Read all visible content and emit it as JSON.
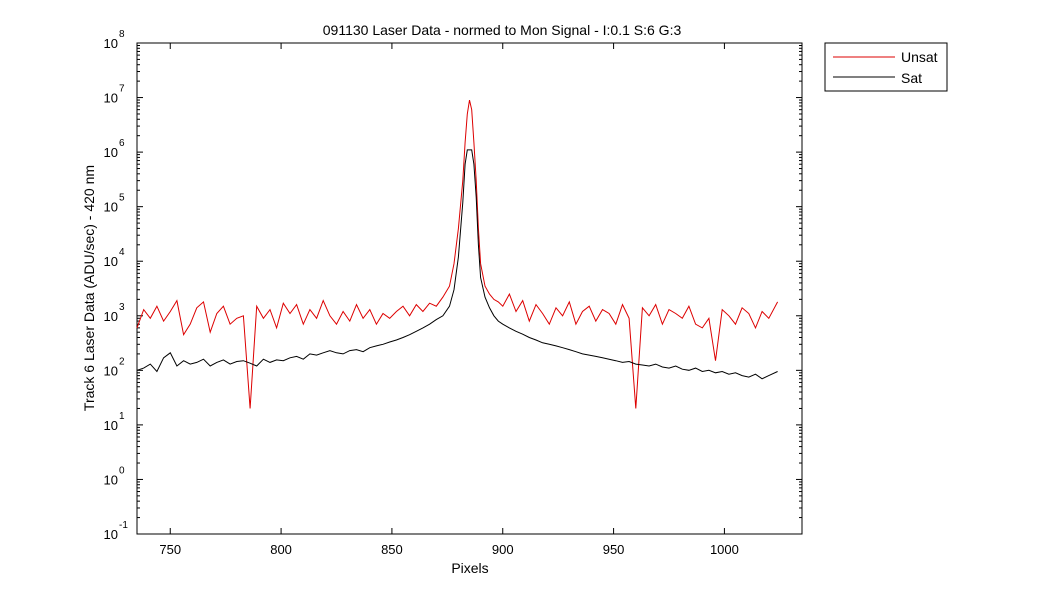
{
  "chart_data": {
    "type": "line",
    "title": "091130 Laser Data - normed to Mon Signal -   I:0.1  S:6  G:3",
    "xlabel": "Pixels",
    "ylabel": "Track 6 Laser Data (ADU/sec) - 420 nm",
    "xlim": [
      735,
      1035
    ],
    "ylim": [
      0.1,
      100000000
    ],
    "yscale": "log",
    "xticks": [
      750,
      800,
      850,
      900,
      950,
      1000
    ],
    "xtick_labels": [
      "750",
      "800",
      "850",
      "900",
      "950",
      "1000"
    ],
    "yticks": [
      {
        "value": 0.1,
        "base": "10",
        "exp": "-1"
      },
      {
        "value": 1,
        "base": "10",
        "exp": "0"
      },
      {
        "value": 10,
        "base": "10",
        "exp": "1"
      },
      {
        "value": 100,
        "base": "10",
        "exp": "2"
      },
      {
        "value": 1000,
        "base": "10",
        "exp": "3"
      },
      {
        "value": 10000,
        "base": "10",
        "exp": "4"
      },
      {
        "value": 100000,
        "base": "10",
        "exp": "5"
      },
      {
        "value": 1000000,
        "base": "10",
        "exp": "6"
      },
      {
        "value": 10000000,
        "base": "10",
        "exp": "7"
      },
      {
        "value": 100000000,
        "base": "10",
        "exp": "8"
      }
    ],
    "grid": false,
    "legend_position": "outside-top-right",
    "series": [
      {
        "name": "Unsat",
        "color": "#dd0000",
        "x": [
          735,
          738,
          741,
          744,
          747,
          750,
          753,
          756,
          759,
          762,
          765,
          768,
          771,
          774,
          777,
          780,
          783,
          786,
          789,
          792,
          795,
          798,
          801,
          804,
          807,
          810,
          813,
          816,
          819,
          822,
          825,
          828,
          831,
          834,
          837,
          840,
          843,
          846,
          849,
          852,
          855,
          858,
          861,
          864,
          867,
          870,
          873,
          876,
          878,
          880,
          882,
          883,
          884,
          885,
          886,
          887,
          888,
          889,
          890,
          892,
          894,
          896,
          898,
          900,
          903,
          906,
          909,
          912,
          915,
          918,
          921,
          924,
          927,
          930,
          933,
          936,
          939,
          942,
          945,
          948,
          951,
          954,
          957,
          960,
          963,
          966,
          969,
          972,
          975,
          978,
          981,
          984,
          987,
          990,
          993,
          996,
          999,
          1002,
          1005,
          1008,
          1011,
          1014,
          1017,
          1020,
          1024
        ],
        "y": [
          600,
          1300,
          900,
          1500,
          800,
          1200,
          1900,
          450,
          700,
          1400,
          1800,
          500,
          1100,
          1500,
          700,
          900,
          1000,
          20,
          1500,
          900,
          1300,
          600,
          1700,
          1100,
          1600,
          700,
          1300,
          900,
          1900,
          1000,
          700,
          1200,
          800,
          1600,
          900,
          1300,
          700,
          1100,
          900,
          1200,
          1500,
          1000,
          1600,
          1200,
          1700,
          1500,
          2200,
          3500,
          9000,
          40000,
          300000,
          1500000,
          5000000,
          9000000,
          6000000,
          1500000,
          300000,
          40000,
          9000,
          3500,
          2500,
          2000,
          1800,
          1500,
          2500,
          1200,
          1900,
          800,
          1600,
          1100,
          700,
          1400,
          1000,
          1800,
          700,
          1200,
          1500,
          800,
          1300,
          1100,
          700,
          1600,
          900,
          20,
          1400,
          1000,
          1600,
          700,
          1300,
          1100,
          900,
          1500,
          700,
          600,
          900,
          150,
          1300,
          1000,
          700,
          1400,
          1100,
          600,
          1200,
          900,
          1800
        ]
      },
      {
        "name": "Sat",
        "color": "#000000",
        "x": [
          735,
          738,
          741,
          744,
          747,
          750,
          753,
          756,
          759,
          762,
          765,
          768,
          771,
          774,
          777,
          780,
          783,
          786,
          789,
          792,
          795,
          798,
          801,
          804,
          807,
          810,
          813,
          816,
          819,
          822,
          825,
          828,
          831,
          834,
          837,
          840,
          843,
          846,
          849,
          852,
          855,
          858,
          861,
          864,
          867,
          870,
          873,
          876,
          878,
          880,
          882,
          883,
          884,
          885,
          886,
          887,
          888,
          889,
          890,
          892,
          894,
          896,
          898,
          900,
          903,
          906,
          909,
          912,
          915,
          918,
          921,
          924,
          927,
          930,
          933,
          936,
          939,
          942,
          945,
          948,
          951,
          954,
          957,
          960,
          963,
          966,
          969,
          972,
          975,
          978,
          981,
          984,
          987,
          990,
          993,
          996,
          999,
          1002,
          1005,
          1008,
          1011,
          1014,
          1017,
          1020,
          1024
        ],
        "y": [
          100,
          110,
          130,
          95,
          170,
          210,
          120,
          150,
          130,
          140,
          160,
          120,
          140,
          155,
          130,
          145,
          150,
          135,
          120,
          160,
          140,
          155,
          150,
          170,
          180,
          160,
          200,
          190,
          210,
          230,
          210,
          200,
          230,
          240,
          220,
          260,
          280,
          300,
          330,
          360,
          400,
          450,
          520,
          600,
          700,
          850,
          1000,
          1500,
          3000,
          12000,
          120000,
          600000,
          1100000,
          1100000,
          1100000,
          600000,
          150000,
          20000,
          5000,
          2200,
          1400,
          1000,
          800,
          700,
          600,
          520,
          460,
          400,
          360,
          320,
          300,
          280,
          260,
          240,
          220,
          200,
          190,
          180,
          170,
          160,
          150,
          140,
          145,
          130,
          125,
          120,
          130,
          115,
          110,
          120,
          105,
          100,
          110,
          95,
          100,
          90,
          95,
          85,
          90,
          80,
          75,
          85,
          70,
          80,
          95
        ]
      }
    ]
  }
}
